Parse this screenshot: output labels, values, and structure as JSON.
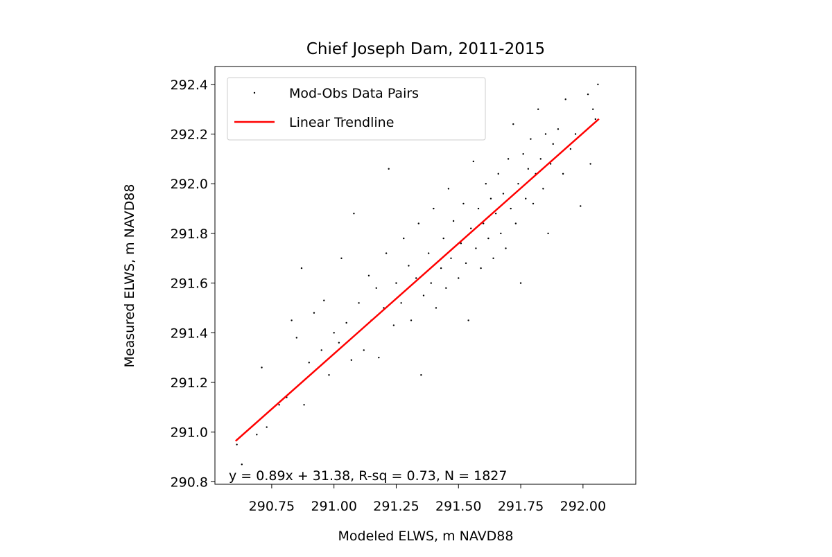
{
  "chart_data": {
    "type": "scatter",
    "title": "Chief Joseph Dam, 2011-2015",
    "xlabel": "Modeled ELWS, m NAVD88",
    "ylabel": "Measured ELWS, m NAVD88",
    "annotation": "y = 0.89x + 31.38, R-sq = 0.73, N = 1827",
    "xlim": [
      290.522,
      292.212
    ],
    "ylim": [
      290.79,
      292.472
    ],
    "xticks": [
      {
        "value": 290.75,
        "label": "290.75"
      },
      {
        "value": 291.0,
        "label": "291.00"
      },
      {
        "value": 291.25,
        "label": "291.25"
      },
      {
        "value": 291.5,
        "label": "291.50"
      },
      {
        "value": 291.75,
        "label": "291.75"
      },
      {
        "value": 292.0,
        "label": "292.00"
      }
    ],
    "yticks": [
      290.8,
      {
        "value": 291.0,
        "label": "291.0"
      },
      291.2,
      291.4,
      291.6,
      291.8,
      {
        "value": 292.0,
        "label": "292.0"
      },
      292.2,
      292.4
    ],
    "legend": "upper left",
    "series": [
      {
        "name": "Mod-Obs Data Pairs",
        "type": "scatter",
        "color": "#000000",
        "x": [
          290.61,
          290.63,
          290.68,
          290.69,
          290.73,
          290.71,
          290.78,
          290.81,
          290.83,
          290.85,
          290.87,
          290.88,
          290.9,
          290.92,
          290.95,
          290.96,
          290.98,
          291.0,
          291.02,
          291.03,
          291.05,
          291.07,
          291.08,
          291.1,
          291.12,
          291.14,
          291.15,
          291.17,
          291.18,
          291.2,
          291.21,
          291.22,
          291.24,
          291.25,
          291.27,
          291.28,
          291.3,
          291.31,
          291.33,
          291.34,
          291.35,
          291.36,
          291.38,
          291.39,
          291.4,
          291.41,
          291.43,
          291.44,
          291.45,
          291.46,
          291.47,
          291.48,
          291.5,
          291.51,
          291.52,
          291.53,
          291.54,
          291.55,
          291.56,
          291.57,
          291.58,
          291.59,
          291.6,
          291.61,
          291.62,
          291.63,
          291.64,
          291.65,
          291.66,
          291.67,
          291.68,
          291.69,
          291.7,
          291.71,
          291.72,
          291.73,
          291.74,
          291.75,
          291.76,
          291.77,
          291.78,
          291.79,
          291.8,
          291.81,
          291.82,
          291.83,
          291.84,
          291.85,
          291.86,
          291.87,
          291.88,
          291.9,
          291.92,
          291.93,
          291.95,
          291.97,
          291.99,
          292.02,
          292.03,
          292.05,
          292.06,
          292.04
        ],
        "y": [
          290.95,
          290.87,
          291.03,
          290.99,
          291.02,
          291.26,
          291.11,
          291.14,
          291.45,
          291.38,
          291.66,
          291.11,
          291.28,
          291.48,
          291.33,
          291.53,
          291.23,
          291.4,
          291.36,
          291.7,
          291.44,
          291.29,
          291.88,
          291.52,
          291.33,
          291.63,
          291.45,
          291.58,
          291.3,
          291.5,
          291.72,
          292.06,
          291.43,
          291.6,
          291.52,
          291.78,
          291.67,
          291.45,
          291.62,
          291.84,
          291.23,
          291.55,
          291.72,
          291.6,
          291.9,
          291.5,
          291.66,
          291.78,
          291.58,
          291.98,
          291.7,
          291.85,
          291.62,
          291.76,
          291.92,
          291.68,
          291.45,
          291.82,
          292.09,
          291.74,
          291.9,
          291.66,
          291.84,
          292.0,
          291.78,
          291.94,
          291.7,
          291.88,
          292.04,
          291.8,
          291.96,
          291.74,
          292.1,
          291.9,
          292.24,
          291.84,
          292.0,
          291.6,
          292.12,
          291.94,
          292.06,
          292.18,
          291.92,
          292.04,
          292.3,
          292.1,
          291.98,
          292.2,
          291.8,
          292.08,
          292.16,
          292.22,
          292.04,
          292.34,
          292.14,
          292.2,
          291.91,
          292.36,
          292.08,
          292.26,
          292.4,
          292.3
        ]
      },
      {
        "name": "Linear Trendline",
        "type": "line",
        "color": "#ff0000",
        "x": [
          290.605,
          292.064
        ],
        "y": [
          290.964,
          292.261
        ]
      }
    ]
  }
}
